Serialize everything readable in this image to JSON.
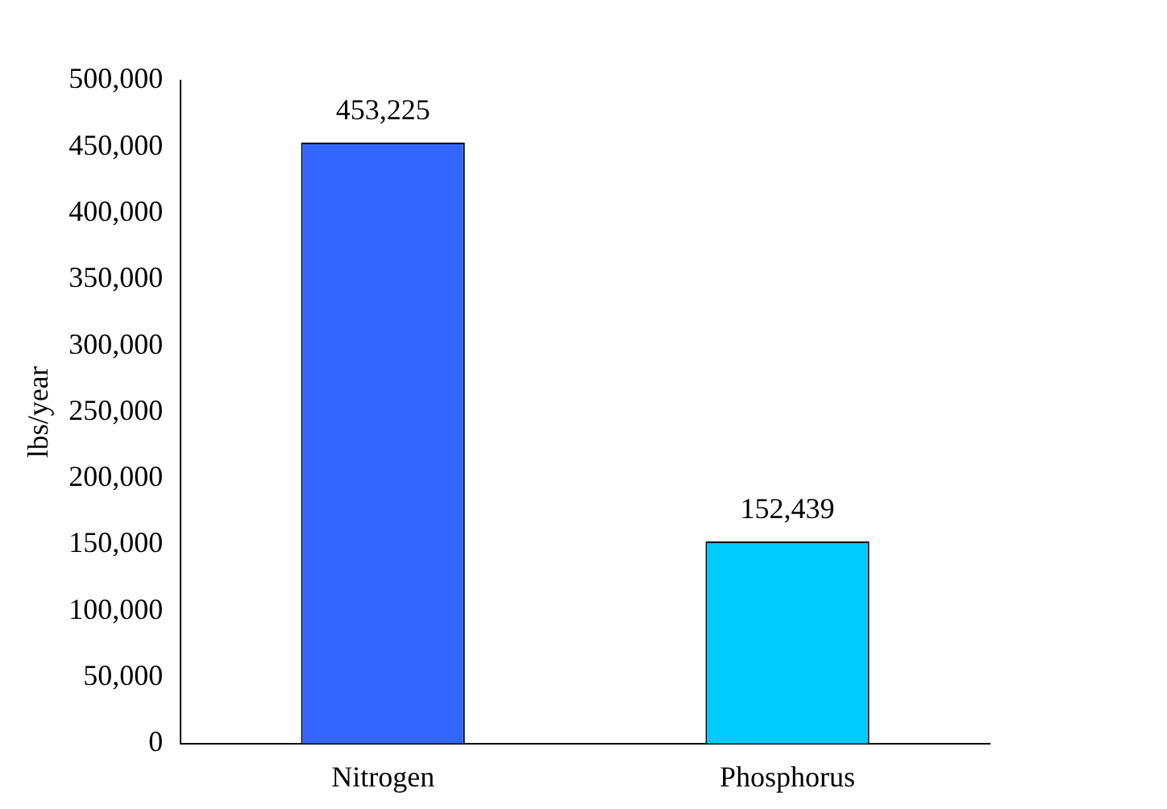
{
  "chart_data": {
    "type": "bar",
    "ylabel": "lbs/year",
    "categories": [
      "Nitrogen",
      "Phosphorus"
    ],
    "values": [
      453225,
      152439
    ],
    "colors": [
      "#3366ff",
      "#00ccff"
    ],
    "value_labels": [
      "453,225",
      "152,439"
    ],
    "ylim": [
      0,
      500000
    ],
    "yticks": [
      0,
      {
        "value": 50000,
        "label": "50,000"
      },
      {
        "value": 100000,
        "label": "100,000"
      },
      {
        "value": 150000,
        "label": "150,000"
      },
      {
        "value": 200000,
        "label": "200,000"
      },
      {
        "value": 250000,
        "label": "250,000"
      },
      {
        "value": 300000,
        "label": "300,000"
      },
      {
        "value": 350000,
        "label": "350,000"
      },
      {
        "value": 400000,
        "label": "400,000"
      },
      {
        "value": 450000,
        "label": "450,000"
      },
      {
        "value": 500000,
        "label": "500,000"
      }
    ],
    "grid": false,
    "legend": false
  }
}
